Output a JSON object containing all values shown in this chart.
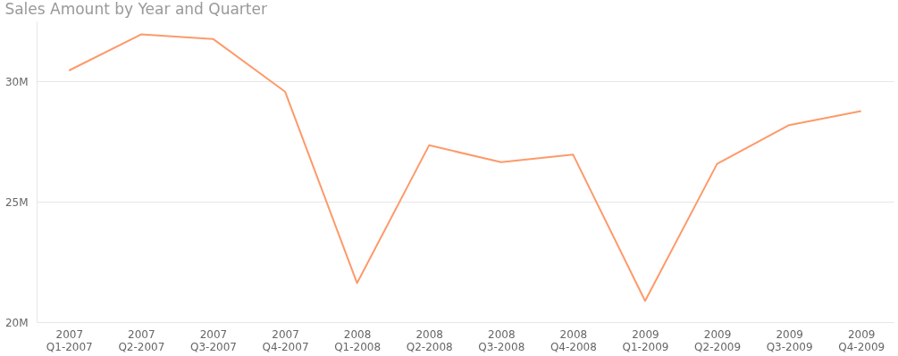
{
  "chart_data": {
    "type": "line",
    "title": "Sales Amount by Year and Quarter",
    "categories": [
      "2007\nQ1-2007",
      "2007\nQ2-2007",
      "2007\nQ3-2007",
      "2007\nQ4-2007",
      "2008\nQ1-2008",
      "2008\nQ2-2008",
      "2008\nQ3-2008",
      "2008\nQ4-2008",
      "2009\nQ1-2009",
      "2009\nQ2-2009",
      "2009\nQ3-2009",
      "2009\nQ4-2009"
    ],
    "series": [
      {
        "color": "#fd9a6a",
        "values": [
          30.46,
          31.96,
          31.77,
          29.58,
          21.62,
          27.35,
          26.65,
          26.96,
          20.88,
          26.58,
          28.19,
          28.77
        ]
      }
    ],
    "ylim": [
      20,
      32.5
    ],
    "yticks": [
      {
        "value": 20,
        "label": "20M"
      },
      {
        "value": 25,
        "label": "25M"
      },
      {
        "value": 30,
        "label": "30M"
      }
    ],
    "grid": "y",
    "marker": "none",
    "line_style": "solid"
  }
}
